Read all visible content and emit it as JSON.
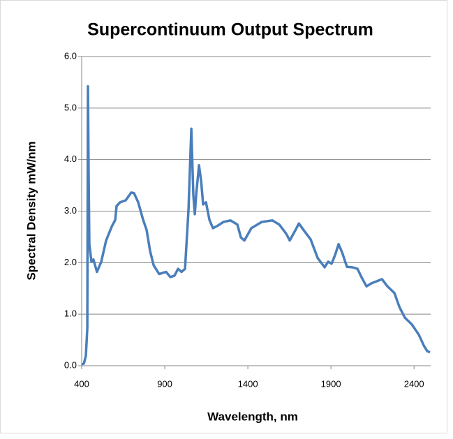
{
  "chart_data": {
    "type": "line",
    "title": "Supercontinuum Output Spectrum",
    "x_label": "Wavelength, nm",
    "y_label": "Spectral Density mW/nm",
    "x": [
      400,
      413,
      425,
      434,
      438,
      442,
      446,
      459,
      471,
      492,
      518,
      547,
      581,
      602,
      610,
      631,
      665,
      698,
      715,
      740,
      770,
      791,
      812,
      833,
      866,
      908,
      934,
      959,
      980,
      1001,
      1022,
      1043,
      1060,
      1072,
      1081,
      1089,
      1106,
      1119,
      1131,
      1148,
      1169,
      1190,
      1220,
      1253,
      1295,
      1337,
      1358,
      1379,
      1421,
      1484,
      1547,
      1589,
      1631,
      1652,
      1686,
      1707,
      1736,
      1778,
      1820,
      1862,
      1883,
      1904,
      1925,
      1946,
      1967,
      1996,
      2030,
      2060,
      2085,
      2114,
      2144,
      2177,
      2207,
      2240,
      2282,
      2312,
      2345,
      2387,
      2429,
      2459,
      2480,
      2496
    ],
    "values": [
      0.03,
      0.04,
      0.19,
      0.73,
      5.42,
      3.7,
      2.36,
      2.02,
      2.06,
      1.82,
      2.02,
      2.43,
      2.7,
      2.83,
      3.1,
      3.17,
      3.21,
      3.36,
      3.35,
      3.17,
      2.83,
      2.63,
      2.22,
      1.95,
      1.78,
      1.82,
      1.72,
      1.75,
      1.88,
      1.82,
      1.88,
      3.04,
      4.6,
      3.31,
      2.94,
      3.31,
      3.89,
      3.58,
      3.13,
      3.17,
      2.83,
      2.67,
      2.72,
      2.79,
      2.82,
      2.74,
      2.49,
      2.43,
      2.67,
      2.79,
      2.82,
      2.74,
      2.56,
      2.43,
      2.63,
      2.76,
      2.63,
      2.45,
      2.09,
      1.91,
      2.02,
      1.98,
      2.15,
      2.36,
      2.2,
      1.92,
      1.91,
      1.88,
      1.71,
      1.54,
      1.6,
      1.64,
      1.68,
      1.54,
      1.41,
      1.14,
      0.93,
      0.8,
      0.6,
      0.39,
      0.28,
      0.26
    ],
    "color": "#4a7ebb",
    "xlim": [
      400,
      2500
    ],
    "xticks": [
      400,
      900,
      1400,
      1900,
      2400
    ],
    "ylim": [
      0,
      6
    ],
    "yticks": [
      {
        "value": 0,
        "label": "0.0"
      },
      {
        "value": 1,
        "label": "1.0"
      },
      {
        "value": 2,
        "label": "2.0"
      },
      {
        "value": 3,
        "label": "3.0"
      },
      {
        "value": 4,
        "label": "4.0"
      },
      {
        "value": 5,
        "label": "5.0"
      },
      {
        "value": 6,
        "label": "6.0"
      }
    ],
    "grid": true
  }
}
